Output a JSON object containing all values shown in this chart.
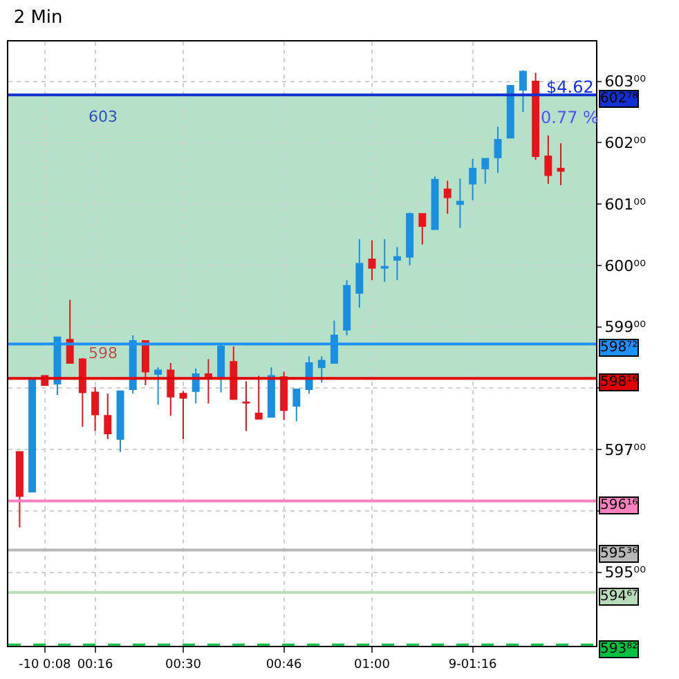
{
  "chart_data": {
    "type": "candlestick",
    "title": "2 Min",
    "x": [
      4,
      6,
      8,
      10,
      12,
      14,
      16,
      18,
      20,
      22,
      24,
      26,
      28,
      30,
      32,
      34,
      36,
      38,
      40,
      42,
      44,
      46,
      48,
      50,
      52,
      54,
      56,
      58,
      60,
      62,
      64,
      66,
      68,
      70,
      72,
      74,
      76,
      78,
      80,
      82,
      84,
      86,
      88,
      90
    ],
    "ohlc": [
      [
        596.96,
        596.96,
        595.73,
        596.24
      ],
      [
        596.31,
        598.16,
        596.31,
        598.16
      ],
      [
        598.2,
        598.2,
        598.05,
        598.05
      ],
      [
        598.07,
        598.83,
        597.89,
        598.83
      ],
      [
        598.79,
        599.44,
        598.41,
        598.41
      ],
      [
        598.47,
        598.49,
        597.37,
        597.93
      ],
      [
        597.93,
        598.02,
        597.3,
        597.57
      ],
      [
        597.55,
        597.91,
        597.17,
        597.26
      ],
      [
        597.17,
        597.95,
        596.96,
        597.95
      ],
      [
        597.98,
        598.86,
        597.91,
        598.77
      ],
      [
        598.77,
        598.77,
        598.05,
        598.27
      ],
      [
        598.23,
        598.34,
        597.73,
        598.29
      ],
      [
        598.29,
        598.41,
        597.55,
        597.86
      ],
      [
        597.91,
        597.95,
        597.17,
        597.84
      ],
      [
        597.95,
        598.32,
        597.75,
        598.23
      ],
      [
        598.23,
        598.47,
        597.75,
        598.18
      ],
      [
        598.18,
        598.72,
        597.93,
        598.68
      ],
      [
        598.43,
        598.68,
        597.82,
        597.82
      ],
      [
        597.77,
        598.11,
        597.3,
        597.76
      ],
      [
        597.59,
        598.2,
        597.5,
        597.5
      ],
      [
        597.53,
        598.34,
        597.53,
        598.2
      ],
      [
        598.18,
        598.27,
        597.48,
        597.64
      ],
      [
        597.71,
        597.98,
        597.46,
        597.98
      ],
      [
        597.98,
        598.52,
        597.91,
        598.41
      ],
      [
        598.34,
        598.52,
        598.09,
        598.45
      ],
      [
        598.41,
        599.1,
        598.41,
        598.86
      ],
      [
        598.95,
        599.76,
        598.86,
        599.67
      ],
      [
        599.55,
        600.43,
        599.31,
        600.03
      ],
      [
        600.1,
        600.41,
        599.76,
        599.96
      ],
      [
        599.96,
        600.43,
        599.73,
        599.98
      ],
      [
        600.09,
        600.3,
        599.76,
        600.14
      ],
      [
        600.14,
        600.86,
        600.0,
        600.84
      ],
      [
        600.84,
        600.84,
        600.34,
        600.64
      ],
      [
        600.59,
        601.45,
        600.59,
        601.4
      ],
      [
        601.24,
        601.38,
        600.84,
        601.11
      ],
      [
        601.0,
        601.42,
        600.61,
        601.04
      ],
      [
        601.33,
        601.74,
        601.06,
        601.58
      ],
      [
        601.58,
        601.74,
        601.33,
        601.74
      ],
      [
        601.76,
        602.26,
        601.51,
        602.05
      ],
      [
        602.08,
        602.93,
        602.08,
        602.93
      ],
      [
        602.86,
        603.18,
        602.5,
        603.16
      ],
      [
        603.0,
        603.14,
        601.72,
        601.78
      ],
      [
        601.78,
        602.12,
        601.33,
        601.47
      ],
      [
        601.58,
        601.99,
        601.31,
        601.54
      ]
    ],
    "colors": [
      "#e8141c",
      "#1a8fe0",
      "#e8141c",
      "#1a8fe0",
      "#e8141c",
      "#e8141c",
      "#e8141c",
      "#e8141c",
      "#1a8fe0",
      "#1a8fe0",
      "#e8141c",
      "#1a8fe0",
      "#e8141c",
      "#e8141c",
      "#1a8fe0",
      "#e8141c",
      "#1a8fe0",
      "#e8141c",
      "#e8141c",
      "#e8141c",
      "#1a8fe0",
      "#e8141c",
      "#1a8fe0",
      "#1a8fe0",
      "#1a8fe0",
      "#1a8fe0",
      "#1a8fe0",
      "#1a8fe0",
      "#e8141c",
      "#1a8fe0",
      "#1a8fe0",
      "#1a8fe0",
      "#e8141c",
      "#1a8fe0",
      "#e8141c",
      "#1a8fe0",
      "#1a8fe0",
      "#1a8fe0",
      "#1a8fe0",
      "#1a8fe0",
      "#1a8fe0",
      "#e8141c",
      "#e8141c",
      "#e8141c"
    ],
    "xlim": [
      2.2,
      95.6
    ],
    "xticks": [
      {
        "value": 8,
        "label": "-10 0:08"
      },
      {
        "value": 16,
        "label": "00:16"
      },
      {
        "value": 30,
        "label": "00:30"
      },
      {
        "value": 46,
        "label": "00:46"
      },
      {
        "value": 60,
        "label": "01:00"
      },
      {
        "value": 76,
        "label": "9-01:16"
      }
    ],
    "ylim": [
      593.8,
      603.65
    ],
    "yticks": [
      {
        "value": 595,
        "label": "595⁰⁰"
      },
      {
        "value": 596,
        "label": null
      },
      {
        "value": 597,
        "label": "597⁰⁰"
      },
      {
        "value": 598,
        "label": null
      },
      {
        "value": 599,
        "label": "599⁰⁰"
      },
      {
        "value": 600,
        "label": "600⁰⁰"
      },
      {
        "value": 601,
        "label": "601⁰⁰"
      },
      {
        "value": 602,
        "label": "602⁰⁰"
      },
      {
        "value": 603,
        "label": "603⁰⁰"
      }
    ],
    "ref_lines": [
      {
        "axis": "y",
        "value": 602.78,
        "label": "602⁷⁸",
        "color": "#1030d0"
      },
      {
        "axis": "y",
        "value": 598.72,
        "label": "598⁷²",
        "color": "#1e90ff"
      },
      {
        "axis": "y",
        "value": 598.16,
        "label": "598¹⁶",
        "color": "#e00000"
      },
      {
        "axis": "y",
        "value": 596.16,
        "label": "596¹⁶",
        "color": "#ff80c0"
      },
      {
        "axis": "y",
        "value": 595.36,
        "label": "595³⁶",
        "color": "#b8b8b8"
      },
      {
        "axis": "y",
        "value": 594.67,
        "label": "594⁶⁷",
        "color": "#b8dcb8"
      },
      {
        "axis": "y",
        "value": 593.82,
        "label": "593⁸²",
        "color": "#00c040",
        "line_style": "dashed"
      }
    ],
    "bands": [
      {
        "axis": "y",
        "from": 598.16,
        "to": 602.78,
        "color": "#a8dcc0"
      }
    ],
    "annotations": [
      "603",
      "598",
      "$4.62",
      "0.77 %"
    ],
    "grid": true
  }
}
